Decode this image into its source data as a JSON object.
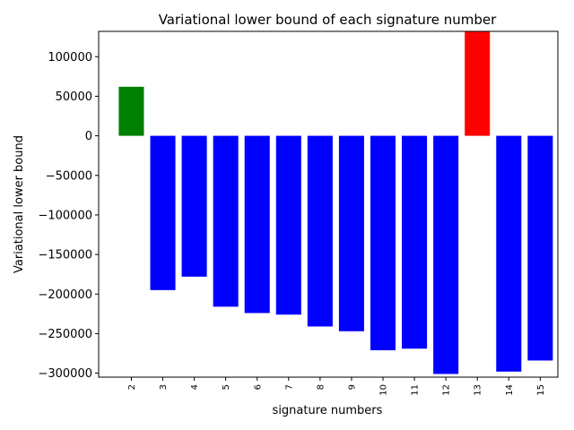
{
  "chart_data": {
    "type": "bar",
    "title": "Variational lower bound of each signature number",
    "xlabel": "signature numbers",
    "ylabel": "Variational lower bound",
    "categories": [
      "2",
      "3",
      "4",
      "5",
      "6",
      "7",
      "8",
      "9",
      "10",
      "11",
      "12",
      "13",
      "14",
      "15"
    ],
    "values": [
      62000,
      -195000,
      -178000,
      -216000,
      -224000,
      -226000,
      -241000,
      -247000,
      -271000,
      -269000,
      -301000,
      135000,
      -298000,
      -284000
    ],
    "bar_colors": [
      "#008000",
      "#0000ff",
      "#0000ff",
      "#0000ff",
      "#0000ff",
      "#0000ff",
      "#0000ff",
      "#0000ff",
      "#0000ff",
      "#0000ff",
      "#0000ff",
      "#ff0000",
      "#0000ff",
      "#0000ff"
    ],
    "ylim": [
      -305000,
      132000
    ],
    "yticks": [
      100000,
      50000,
      0,
      -50000,
      -100000,
      -150000,
      -200000,
      -250000,
      -300000
    ],
    "ytick_labels": [
      "100000",
      "50000",
      "0",
      "−50000",
      "−100000",
      "−150000",
      "−200000",
      "−250000",
      "−300000"
    ],
    "grid": false,
    "legend": "none"
  }
}
